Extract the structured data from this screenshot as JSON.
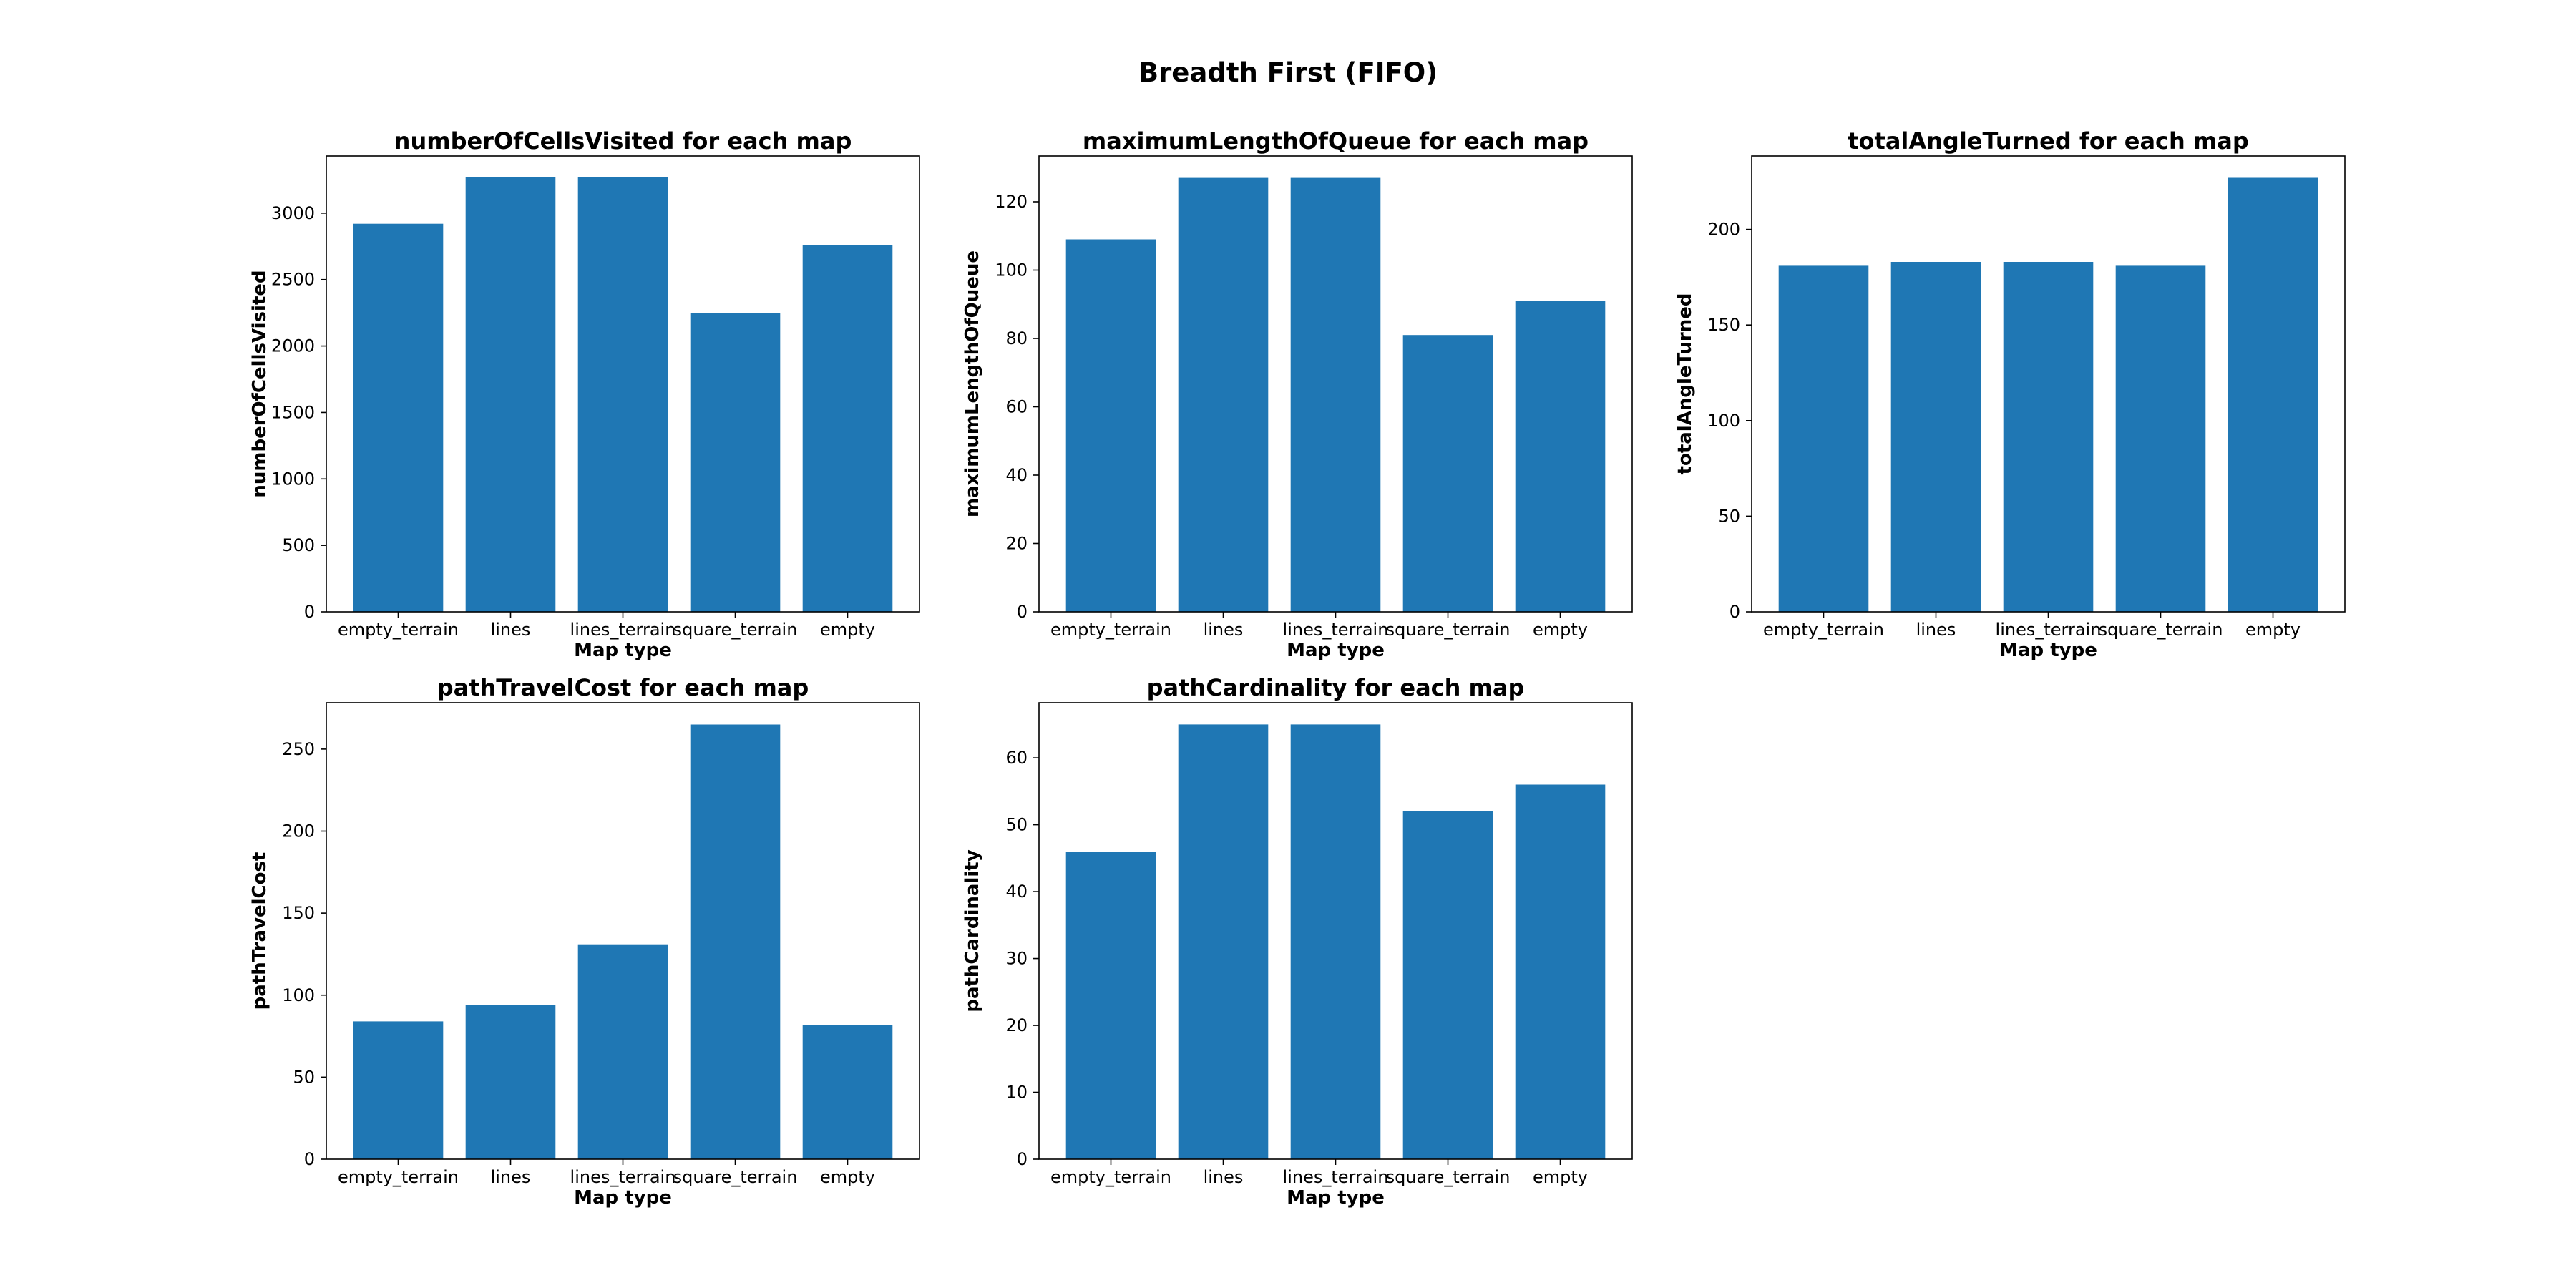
{
  "figure": {
    "suptitle": "Breadth First (FIFO)",
    "bar_color": "#1f77b4",
    "background": "#ffffff"
  },
  "chart_data": [
    {
      "type": "bar",
      "title": "numberOfCellsVisited for each map",
      "xlabel": "Map type",
      "ylabel": "numberOfCellsVisited",
      "categories": [
        "empty_terrain",
        "lines",
        "lines_terrain",
        "square_terrain",
        "empty"
      ],
      "values": [
        2920,
        3270,
        3270,
        2250,
        2760
      ],
      "ylim": [
        0,
        3430
      ],
      "yticks": [
        0,
        500,
        1000,
        1500,
        2000,
        2500,
        3000
      ]
    },
    {
      "type": "bar",
      "title": "maximumLengthOfQueue for each map",
      "xlabel": "Map type",
      "ylabel": "maximumLengthOfQueue",
      "categories": [
        "empty_terrain",
        "lines",
        "lines_terrain",
        "square_terrain",
        "empty"
      ],
      "values": [
        109,
        127,
        127,
        81,
        91
      ],
      "ylim": [
        0,
        133.4
      ],
      "yticks": [
        0,
        20,
        40,
        60,
        80,
        100,
        120
      ]
    },
    {
      "type": "bar",
      "title": "totalAngleTurned for each map",
      "xlabel": "Map type",
      "ylabel": "totalAngleTurned",
      "categories": [
        "empty_terrain",
        "lines",
        "lines_terrain",
        "square_terrain",
        "empty"
      ],
      "values": [
        181,
        183,
        183,
        181,
        227
      ],
      "ylim": [
        0,
        238.4
      ],
      "yticks": [
        0,
        50,
        100,
        150,
        200
      ]
    },
    {
      "type": "bar",
      "title": "pathTravelCost for each map",
      "xlabel": "Map type",
      "ylabel": "pathTravelCost",
      "categories": [
        "empty_terrain",
        "lines",
        "lines_terrain",
        "square_terrain",
        "empty"
      ],
      "values": [
        84,
        94,
        131,
        265,
        82
      ],
      "ylim": [
        0,
        278.3
      ],
      "yticks": [
        0,
        50,
        100,
        150,
        200,
        250
      ]
    },
    {
      "type": "bar",
      "title": "pathCardinality for each map",
      "xlabel": "Map type",
      "ylabel": "pathCardinality",
      "categories": [
        "empty_terrain",
        "lines",
        "lines_terrain",
        "square_terrain",
        "empty"
      ],
      "values": [
        46,
        65,
        65,
        52,
        56
      ],
      "ylim": [
        0,
        68.25
      ],
      "yticks": [
        0,
        10,
        20,
        30,
        40,
        50,
        60
      ]
    }
  ]
}
